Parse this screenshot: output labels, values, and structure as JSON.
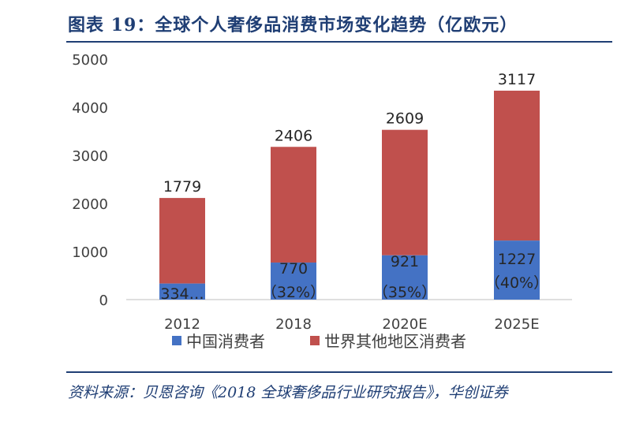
{
  "header": {
    "title": "图表 19：全球个人奢侈品消费市场变化趋势（亿欧元）"
  },
  "footer": {
    "source": "资料来源：贝恩咨询《2018 全球奢侈品行业研究报告》，华创证券"
  },
  "colors": {
    "china": "#4472c4",
    "rest_of_world": "#c0504d",
    "title": "#1f3e74"
  },
  "chart_data": {
    "type": "bar",
    "stacked": true,
    "title": "全球个人奢侈品消费市场变化趋势（亿欧元）",
    "categories": [
      "2012",
      "2018",
      "2020E",
      "2025E"
    ],
    "series": [
      {
        "name": "中国消费者",
        "values": [
          334,
          770,
          921,
          1227
        ]
      },
      {
        "name": "世界其他地区消费者",
        "values": [
          1779,
          2406,
          2609,
          3117
        ]
      }
    ],
    "china_labels": [
      "334…",
      "770",
      "921",
      "1227"
    ],
    "share_labels": [
      "",
      "（32%）",
      "（35%）",
      "（40%）"
    ],
    "top_labels": [
      "1779",
      "2406",
      "2609",
      "3117"
    ],
    "ylim": [
      0,
      5000
    ],
    "yticks": [
      0,
      1000,
      2000,
      3000,
      4000,
      5000
    ],
    "xlabel": "",
    "ylabel": "",
    "legend_position": "bottom"
  }
}
